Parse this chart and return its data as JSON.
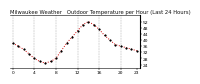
{
  "title": "Milwaukee Weather   Outdoor Temperature per Hour (Last 24 Hours)",
  "hours": [
    0,
    1,
    2,
    3,
    4,
    5,
    6,
    7,
    8,
    9,
    10,
    11,
    12,
    13,
    14,
    15,
    16,
    17,
    18,
    19,
    20,
    21,
    22,
    23
  ],
  "temps": [
    38,
    36,
    34,
    31,
    28,
    26,
    25,
    26,
    28,
    33,
    38,
    42,
    46,
    50,
    52,
    50,
    47,
    43,
    40,
    37,
    36,
    35,
    34,
    33
  ],
  "line_color": "#cc0000",
  "marker_color": "#000000",
  "bg_color": "#ffffff",
  "grid_color": "#888888",
  "ylim": [
    22,
    56
  ],
  "yticks": [
    24,
    28,
    32,
    36,
    40,
    44,
    48,
    52
  ],
  "xtick_positions": [
    0,
    4,
    8,
    12,
    16,
    20,
    23
  ],
  "xtick_labels": [
    "0",
    "4",
    "8",
    "12",
    "16",
    "20",
    "23"
  ],
  "title_fontsize": 3.8,
  "tick_fontsize": 3.2,
  "line_width": 0.7,
  "marker_size": 1.2
}
